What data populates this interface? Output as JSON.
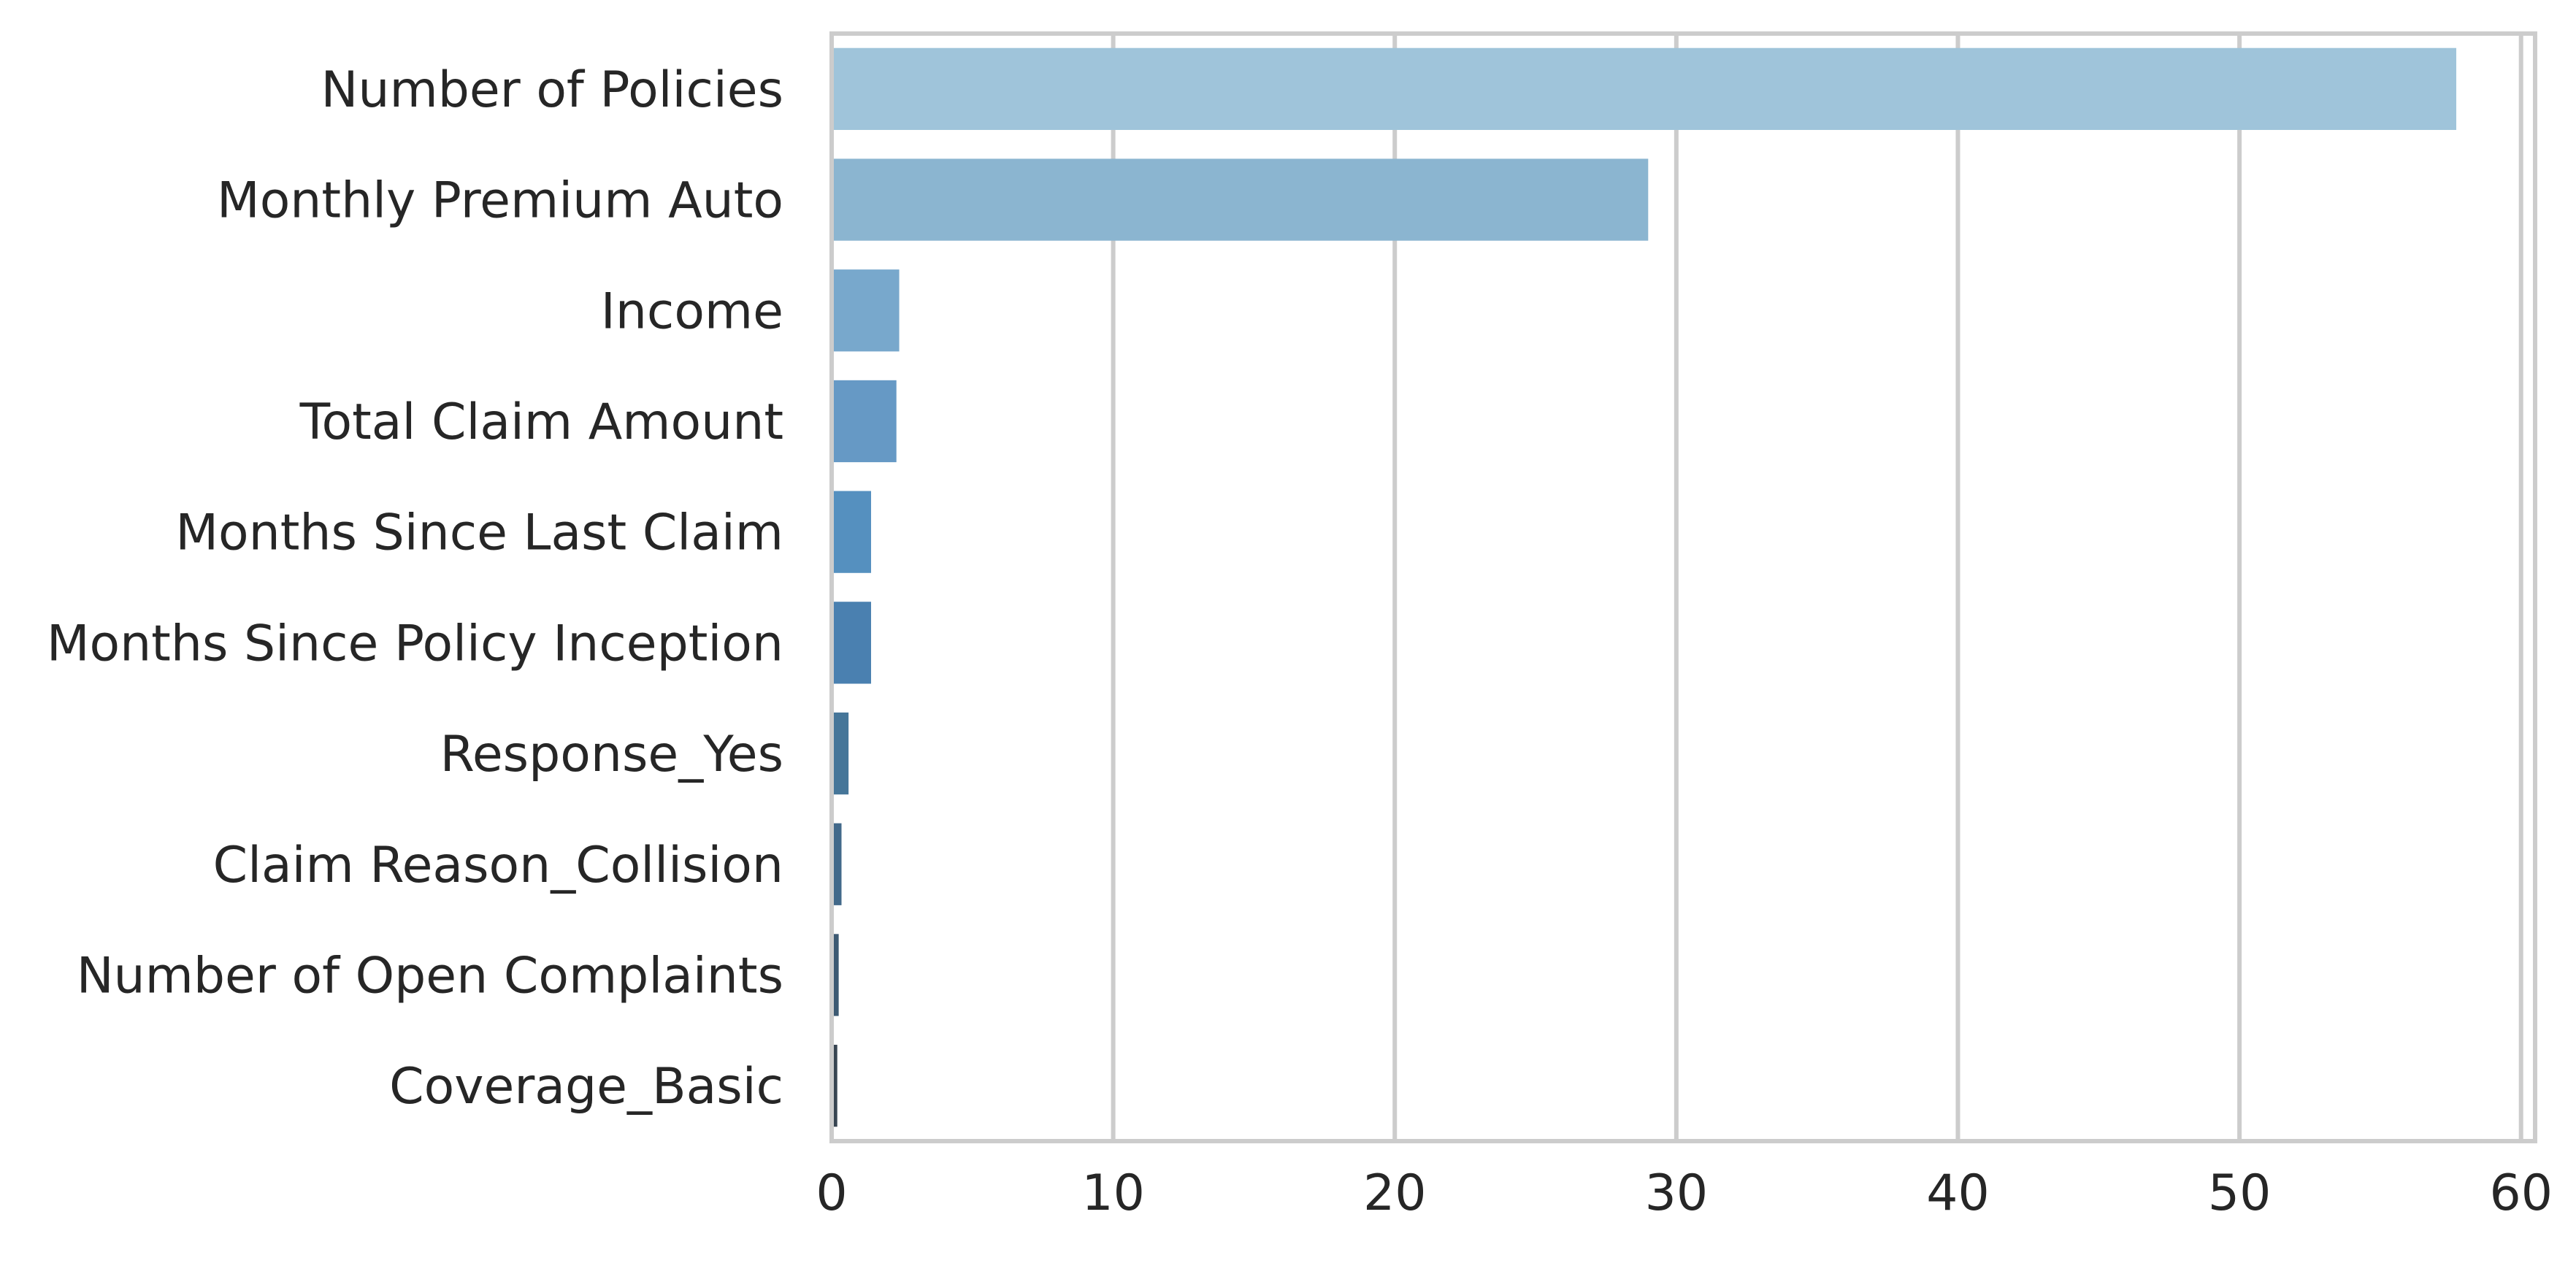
{
  "chart_data": {
    "type": "bar",
    "orientation": "horizontal",
    "categories": [
      "Number of Policies",
      "Monthly Premium Auto",
      "Income",
      "Total Claim Amount",
      "Months Since Last Claim",
      "Months Since Policy Inception",
      "Response_Yes",
      "Claim Reason_Collision",
      "Number of Open Complaints",
      "Coverage_Basic"
    ],
    "values": [
      57.7,
      29.0,
      2.4,
      2.3,
      1.4,
      1.4,
      0.6,
      0.35,
      0.25,
      0.2
    ],
    "colors": [
      "#9fc4da",
      "#8bb5d0",
      "#78a8cc",
      "#6699c5",
      "#5590bf",
      "#4a80b0",
      "#467699",
      "#42698a",
      "#3d5a73",
      "#384552"
    ],
    "title": "",
    "xlabel": "",
    "ylabel": "",
    "xlim": [
      0,
      60.5
    ],
    "xticks": [
      0,
      10,
      20,
      30,
      40,
      50,
      60
    ],
    "grid": "vertical",
    "gridline_color": "#cccccc",
    "legend": "none"
  }
}
